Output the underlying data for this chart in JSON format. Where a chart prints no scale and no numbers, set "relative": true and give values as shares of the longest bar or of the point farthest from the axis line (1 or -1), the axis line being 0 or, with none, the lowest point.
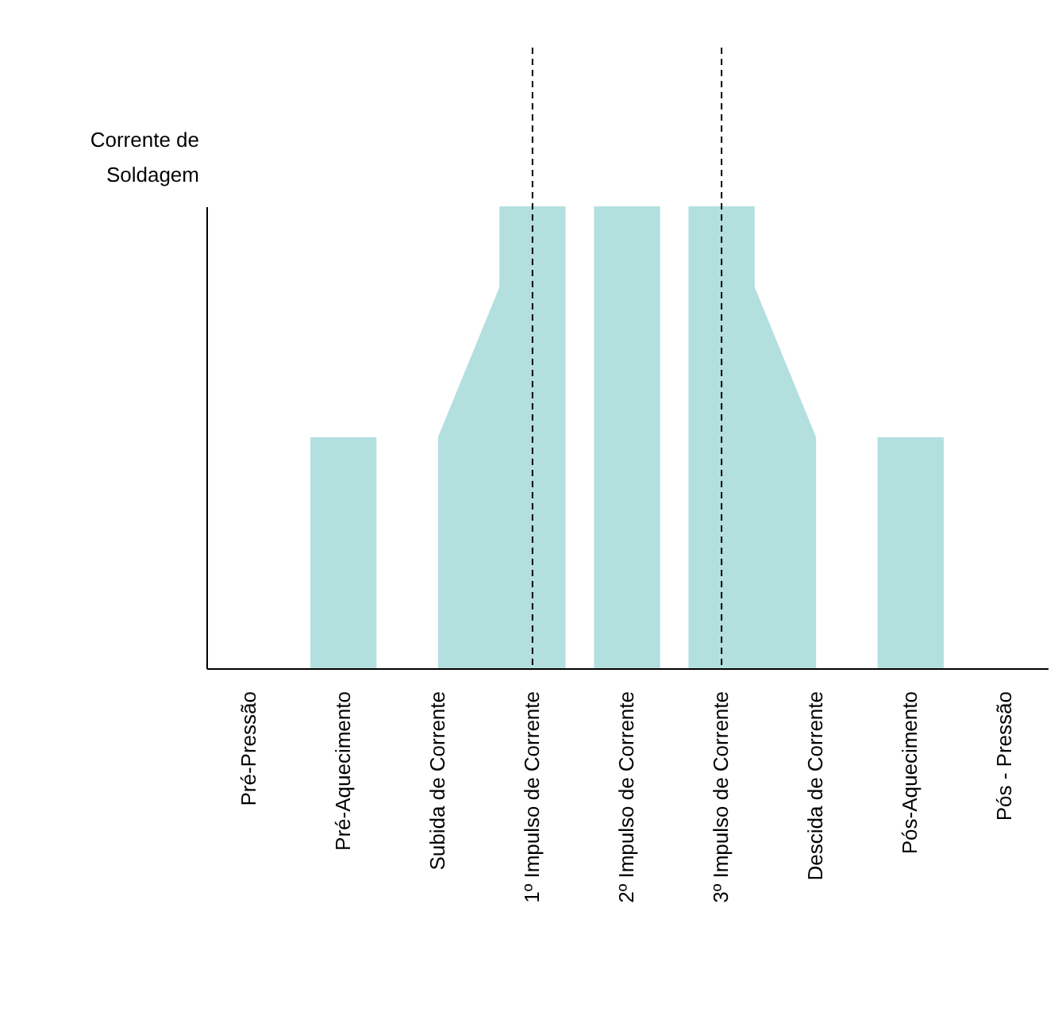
{
  "chart_data": {
    "type": "bar",
    "relative": true,
    "ylabel": "Corrente de Soldagem",
    "categories": [
      "Pré-Pressão",
      "Pré-Aquecimento",
      "Subida de Corrente",
      "1º Impulso de Corrente",
      "2º Impulso de Corrente",
      "3º Impulso de Corrente",
      "Descida de Corrente",
      "Pós-Aquecimento",
      "Pós - Pressão"
    ],
    "series": [
      {
        "color": "#b4dfdf",
        "values": [
          null,
          0.5,
          null,
          1,
          1,
          1,
          null,
          0.5,
          null
        ]
      },
      {
        "type": "area",
        "color": "#b4dfdf",
        "values": [
          null,
          null,
          0.5,
          1,
          null,
          null,
          null,
          null,
          null
        ]
      },
      {
        "type": "area",
        "color": "#b4dfdf",
        "values": [
          null,
          null,
          null,
          null,
          null,
          1,
          0.5,
          null,
          null
        ]
      }
    ],
    "ref_lines": [
      {
        "axis": "x",
        "value": "1º Impulso de Corrente",
        "line_style": "dashed",
        "color": "#000000"
      },
      {
        "axis": "x",
        "value": "3º Impulso de Corrente",
        "line_style": "dashed",
        "color": "#000000"
      }
    ],
    "tick_labels": "x"
  }
}
